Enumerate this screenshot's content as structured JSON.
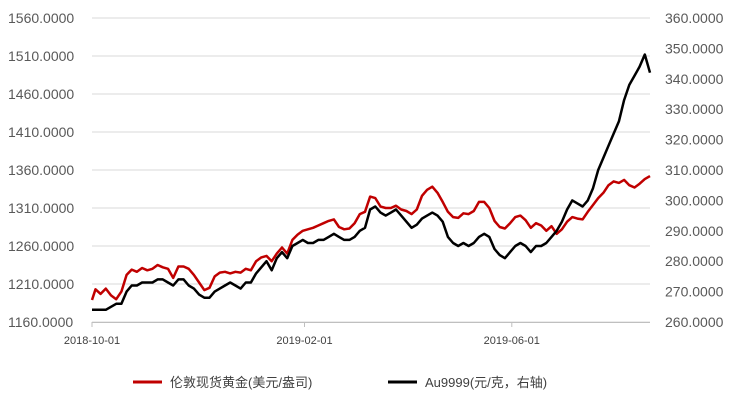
{
  "chart_data": {
    "type": "line",
    "x_ticks": [
      "2018-10-01",
      "2019-02-01",
      "2019-06-01"
    ],
    "y_left": {
      "ticks": [
        "1160.0000",
        "1210.0000",
        "1260.0000",
        "1310.0000",
        "1360.0000",
        "1410.0000",
        "1460.0000",
        "1510.0000",
        "1560.0000"
      ],
      "range": [
        1160,
        1560
      ]
    },
    "y_right": {
      "ticks": [
        "260.0000",
        "270.0000",
        "280.0000",
        "290.0000",
        "300.0000",
        "310.0000",
        "320.0000",
        "330.0000",
        "340.0000",
        "350.0000",
        "360.0000"
      ],
      "range": [
        260,
        360
      ]
    },
    "x_range": [
      "2018-10-01",
      "2019-08-20"
    ],
    "grid": "horizontal",
    "legend_position": "bottom",
    "series": [
      {
        "name": "伦敦现货黄金(美元/盎司)",
        "axis": "left",
        "color": "#c00000",
        "points": [
          [
            "2018-10-01",
            1189
          ],
          [
            "2018-10-03",
            1203
          ],
          [
            "2018-10-06",
            1197
          ],
          [
            "2018-10-09",
            1204
          ],
          [
            "2018-10-12",
            1195
          ],
          [
            "2018-10-15",
            1190
          ],
          [
            "2018-10-18",
            1200
          ],
          [
            "2018-10-21",
            1222
          ],
          [
            "2018-10-24",
            1229
          ],
          [
            "2018-10-27",
            1226
          ],
          [
            "2018-10-30",
            1231
          ],
          [
            "2018-11-02",
            1228
          ],
          [
            "2018-11-05",
            1230
          ],
          [
            "2018-11-08",
            1235
          ],
          [
            "2018-11-11",
            1232
          ],
          [
            "2018-11-14",
            1230
          ],
          [
            "2018-11-17",
            1218
          ],
          [
            "2018-11-20",
            1233
          ],
          [
            "2018-11-23",
            1233
          ],
          [
            "2018-11-26",
            1230
          ],
          [
            "2018-11-29",
            1222
          ],
          [
            "2018-12-02",
            1212
          ],
          [
            "2018-12-05",
            1202
          ],
          [
            "2018-12-08",
            1205
          ],
          [
            "2018-12-11",
            1220
          ],
          [
            "2018-12-14",
            1225
          ],
          [
            "2018-12-17",
            1226
          ],
          [
            "2018-12-20",
            1224
          ],
          [
            "2018-12-23",
            1226
          ],
          [
            "2018-12-26",
            1225
          ],
          [
            "2018-12-29",
            1230
          ],
          [
            "2019-01-01",
            1228
          ],
          [
            "2019-01-04",
            1240
          ],
          [
            "2019-01-07",
            1245
          ],
          [
            "2019-01-10",
            1247
          ],
          [
            "2019-01-13",
            1240
          ],
          [
            "2019-01-16",
            1250
          ],
          [
            "2019-01-19",
            1258
          ],
          [
            "2019-01-22",
            1250
          ],
          [
            "2019-01-25",
            1268
          ],
          [
            "2019-01-28",
            1275
          ],
          [
            "2019-01-31",
            1280
          ],
          [
            "2019-02-03",
            1282
          ],
          [
            "2019-02-06",
            1284
          ],
          [
            "2019-02-09",
            1287
          ],
          [
            "2019-02-12",
            1290
          ],
          [
            "2019-02-15",
            1293
          ],
          [
            "2019-02-18",
            1295
          ],
          [
            "2019-02-21",
            1285
          ],
          [
            "2019-02-24",
            1282
          ],
          [
            "2019-02-27",
            1283
          ],
          [
            "2019-03-02",
            1290
          ],
          [
            "2019-03-05",
            1302
          ],
          [
            "2019-03-08",
            1305
          ],
          [
            "2019-03-11",
            1325
          ],
          [
            "2019-03-14",
            1323
          ],
          [
            "2019-03-17",
            1312
          ],
          [
            "2019-03-20",
            1310
          ],
          [
            "2019-03-23",
            1310
          ],
          [
            "2019-03-26",
            1313
          ],
          [
            "2019-03-29",
            1308
          ],
          [
            "2019-04-01",
            1306
          ],
          [
            "2019-04-04",
            1302
          ],
          [
            "2019-04-07",
            1308
          ],
          [
            "2019-04-10",
            1326
          ],
          [
            "2019-04-13",
            1334
          ],
          [
            "2019-04-16",
            1338
          ],
          [
            "2019-04-19",
            1330
          ],
          [
            "2019-04-22",
            1318
          ],
          [
            "2019-04-25",
            1305
          ],
          [
            "2019-04-28",
            1298
          ],
          [
            "2019-05-01",
            1297
          ],
          [
            "2019-05-04",
            1303
          ],
          [
            "2019-05-07",
            1302
          ],
          [
            "2019-05-10",
            1306
          ],
          [
            "2019-05-13",
            1318
          ],
          [
            "2019-05-16",
            1318
          ],
          [
            "2019-05-19",
            1310
          ],
          [
            "2019-05-22",
            1293
          ],
          [
            "2019-05-25",
            1285
          ],
          [
            "2019-05-28",
            1283
          ],
          [
            "2019-05-31",
            1290
          ],
          [
            "2019-06-03",
            1298
          ],
          [
            "2019-06-06",
            1300
          ],
          [
            "2019-06-09",
            1294
          ],
          [
            "2019-06-12",
            1284
          ],
          [
            "2019-06-15",
            1290
          ],
          [
            "2019-06-18",
            1287
          ],
          [
            "2019-06-21",
            1280
          ],
          [
            "2019-06-24",
            1286
          ],
          [
            "2019-06-27",
            1276
          ],
          [
            "2019-06-30",
            1282
          ],
          [
            "2019-07-03",
            1292
          ],
          [
            "2019-07-06",
            1298
          ],
          [
            "2019-07-09",
            1296
          ],
          [
            "2019-07-12",
            1295
          ],
          [
            "2019-07-15",
            1305
          ],
          [
            "2019-07-18",
            1314
          ],
          [
            "2019-07-21",
            1323
          ],
          [
            "2019-07-24",
            1330
          ],
          [
            "2019-07-27",
            1340
          ],
          [
            "2019-07-30",
            1345
          ],
          [
            "2019-08-02",
            1343
          ],
          [
            "2019-08-05",
            1347
          ],
          [
            "2019-08-08",
            1340
          ],
          [
            "2019-08-11",
            1337
          ],
          [
            "2019-08-14",
            1342
          ],
          [
            "2019-08-17",
            1348
          ],
          [
            "2019-08-20",
            1352
          ]
        ]
      },
      {
        "name": "Au9999(元/克，右轴)",
        "axis": "right",
        "color": "#000000",
        "points": [
          [
            "2018-10-01",
            264
          ],
          [
            "2018-10-03",
            264
          ],
          [
            "2018-10-06",
            264
          ],
          [
            "2018-10-09",
            264
          ],
          [
            "2018-10-12",
            265
          ],
          [
            "2018-10-15",
            266
          ],
          [
            "2018-10-18",
            266
          ],
          [
            "2018-10-21",
            270
          ],
          [
            "2018-10-24",
            272
          ],
          [
            "2018-10-27",
            272
          ],
          [
            "2018-10-30",
            273
          ],
          [
            "2018-11-02",
            273
          ],
          [
            "2018-11-05",
            273
          ],
          [
            "2018-11-08",
            274
          ],
          [
            "2018-11-11",
            274
          ],
          [
            "2018-11-14",
            273
          ],
          [
            "2018-11-17",
            272
          ],
          [
            "2018-11-20",
            274
          ],
          [
            "2018-11-23",
            274
          ],
          [
            "2018-11-26",
            272
          ],
          [
            "2018-11-29",
            271
          ],
          [
            "2018-12-02",
            269
          ],
          [
            "2018-12-05",
            268
          ],
          [
            "2018-12-08",
            268
          ],
          [
            "2018-12-11",
            270
          ],
          [
            "2018-12-14",
            271
          ],
          [
            "2018-12-17",
            272
          ],
          [
            "2018-12-20",
            273
          ],
          [
            "2018-12-23",
            272
          ],
          [
            "2018-12-26",
            271
          ],
          [
            "2018-12-29",
            273
          ],
          [
            "2019-01-01",
            273
          ],
          [
            "2019-01-04",
            276
          ],
          [
            "2019-01-07",
            278
          ],
          [
            "2019-01-10",
            280
          ],
          [
            "2019-01-13",
            277
          ],
          [
            "2019-01-16",
            281
          ],
          [
            "2019-01-19",
            283
          ],
          [
            "2019-01-22",
            281
          ],
          [
            "2019-01-25",
            285
          ],
          [
            "2019-01-28",
            286
          ],
          [
            "2019-01-31",
            287
          ],
          [
            "2019-02-03",
            286
          ],
          [
            "2019-02-06",
            286
          ],
          [
            "2019-02-09",
            287
          ],
          [
            "2019-02-12",
            287
          ],
          [
            "2019-02-15",
            288
          ],
          [
            "2019-02-18",
            289
          ],
          [
            "2019-02-21",
            288
          ],
          [
            "2019-02-24",
            287
          ],
          [
            "2019-02-27",
            287
          ],
          [
            "2019-03-02",
            288
          ],
          [
            "2019-03-05",
            290
          ],
          [
            "2019-03-08",
            291
          ],
          [
            "2019-03-11",
            297
          ],
          [
            "2019-03-14",
            298
          ],
          [
            "2019-03-17",
            296
          ],
          [
            "2019-03-20",
            295
          ],
          [
            "2019-03-23",
            296
          ],
          [
            "2019-03-26",
            297
          ],
          [
            "2019-03-29",
            295
          ],
          [
            "2019-04-01",
            293
          ],
          [
            "2019-04-04",
            291
          ],
          [
            "2019-04-07",
            292
          ],
          [
            "2019-04-10",
            294
          ],
          [
            "2019-04-13",
            295
          ],
          [
            "2019-04-16",
            296
          ],
          [
            "2019-04-19",
            295
          ],
          [
            "2019-04-22",
            293
          ],
          [
            "2019-04-25",
            288
          ],
          [
            "2019-04-28",
            286
          ],
          [
            "2019-05-01",
            285
          ],
          [
            "2019-05-04",
            286
          ],
          [
            "2019-05-07",
            285
          ],
          [
            "2019-05-10",
            286
          ],
          [
            "2019-05-13",
            288
          ],
          [
            "2019-05-16",
            289
          ],
          [
            "2019-05-19",
            288
          ],
          [
            "2019-05-22",
            284
          ],
          [
            "2019-05-25",
            282
          ],
          [
            "2019-05-28",
            281
          ],
          [
            "2019-05-31",
            283
          ],
          [
            "2019-06-03",
            285
          ],
          [
            "2019-06-06",
            286
          ],
          [
            "2019-06-09",
            285
          ],
          [
            "2019-06-12",
            283
          ],
          [
            "2019-06-15",
            285
          ],
          [
            "2019-06-18",
            285
          ],
          [
            "2019-06-21",
            286
          ],
          [
            "2019-06-24",
            288
          ],
          [
            "2019-06-27",
            290
          ],
          [
            "2019-06-30",
            293
          ],
          [
            "2019-07-03",
            297
          ],
          [
            "2019-07-06",
            300
          ],
          [
            "2019-07-09",
            299
          ],
          [
            "2019-07-12",
            298
          ],
          [
            "2019-07-15",
            300
          ],
          [
            "2019-07-18",
            304
          ],
          [
            "2019-07-21",
            310
          ],
          [
            "2019-07-24",
            314
          ],
          [
            "2019-07-27",
            318
          ],
          [
            "2019-07-30",
            322
          ],
          [
            "2019-08-02",
            326
          ],
          [
            "2019-08-05",
            333
          ],
          [
            "2019-08-08",
            338
          ],
          [
            "2019-08-11",
            341
          ],
          [
            "2019-08-14",
            344
          ],
          [
            "2019-08-17",
            348
          ],
          [
            "2019-08-20",
            342
          ]
        ]
      }
    ]
  }
}
